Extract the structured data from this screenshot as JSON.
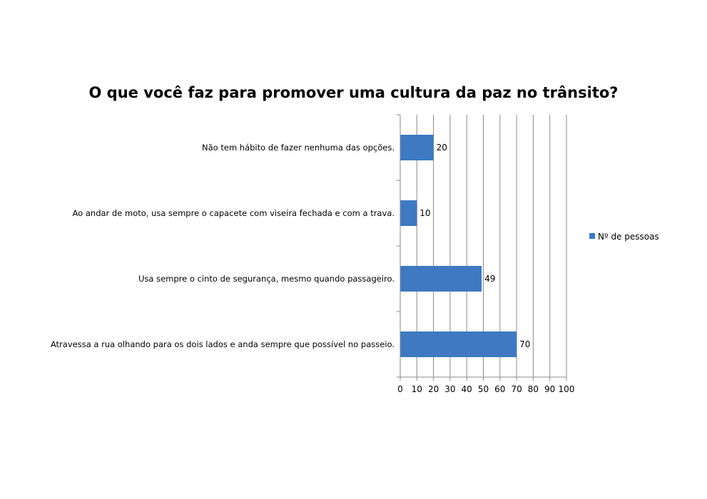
{
  "chart_data": {
    "type": "bar",
    "orientation": "horizontal",
    "title": "O que você faz para promover uma cultura da paz no trânsito?",
    "categories": [
      "Não tem hábito de fazer nenhuma das opções.",
      "Ao andar de moto, usa sempre o capacete com viseira fechada e com a trava.",
      "Usa sempre o cinto de segurança, mesmo quando passageiro.",
      "Atravessa a rua olhando para os dois lados e anda sempre que possível no passeio."
    ],
    "series": [
      {
        "name": "Nº de pessoas",
        "values": [
          20,
          10,
          49,
          70
        ]
      }
    ],
    "xlim": [
      0,
      100
    ],
    "xticks": [
      0,
      10,
      20,
      30,
      40,
      50,
      60,
      70,
      80,
      90,
      100
    ],
    "grid": "vertical",
    "legend": "right",
    "bar_color": "#3e79c1"
  }
}
